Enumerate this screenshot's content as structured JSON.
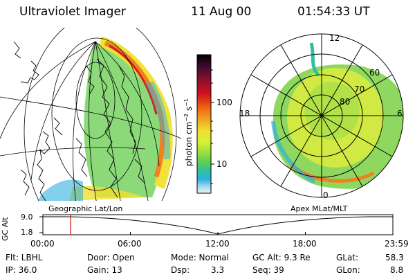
{
  "header": {
    "instrument": "Ultraviolet Imager",
    "date": "11 Aug 00",
    "time": "01:54:33 UT"
  },
  "colors": {
    "background": "#ffffff",
    "text": "#000000",
    "marker": "#cc0000"
  },
  "colorbar": {
    "unit_label": "photon cm",
    "unit_exp1": "−2",
    "unit_mid": "s",
    "unit_exp2": "−1",
    "ticks": [
      "100",
      "10"
    ],
    "scale": "log",
    "colormap": [
      "#000000",
      "#3a0a30",
      "#8a1030",
      "#d01020",
      "#f06010",
      "#f0a020",
      "#f0e030",
      "#d8f030",
      "#a0e040",
      "#60d050",
      "#30c0a0",
      "#30b0e0",
      "#a0d8f0",
      "#f0f0f0"
    ]
  },
  "left_panel": {
    "label": "Geographic Lat/Lon"
  },
  "right_panel": {
    "label": "Apex MLat/MLT",
    "mlt_labels": {
      "top": "12",
      "left": "18",
      "right": "6",
      "bottom": "0"
    },
    "lat_labels": [
      "60",
      "70",
      "80"
    ]
  },
  "timeline": {
    "ylabel": "GC Alt",
    "ytick_top": "9.0",
    "ytick_bottom": "1.8",
    "xticks": [
      "00:00",
      "06:00",
      "12:00",
      "18:00",
      "23:59"
    ],
    "marker_time": "01:54"
  },
  "info": {
    "flt": "Flt: LBHL",
    "ip": "IP: 36.0",
    "door": "Door: Open",
    "gain": "Gain: 13",
    "mode": "Mode: Normal",
    "dsp_label": "Dsp:",
    "dsp_value": "3.3",
    "gc_alt": "GC Alt: 9.3 Re",
    "seq": "Seq: 39",
    "glat_label": "GLat:",
    "glat_value": "58.3",
    "glon_label": "GLon:",
    "glon_value": "8.8"
  }
}
